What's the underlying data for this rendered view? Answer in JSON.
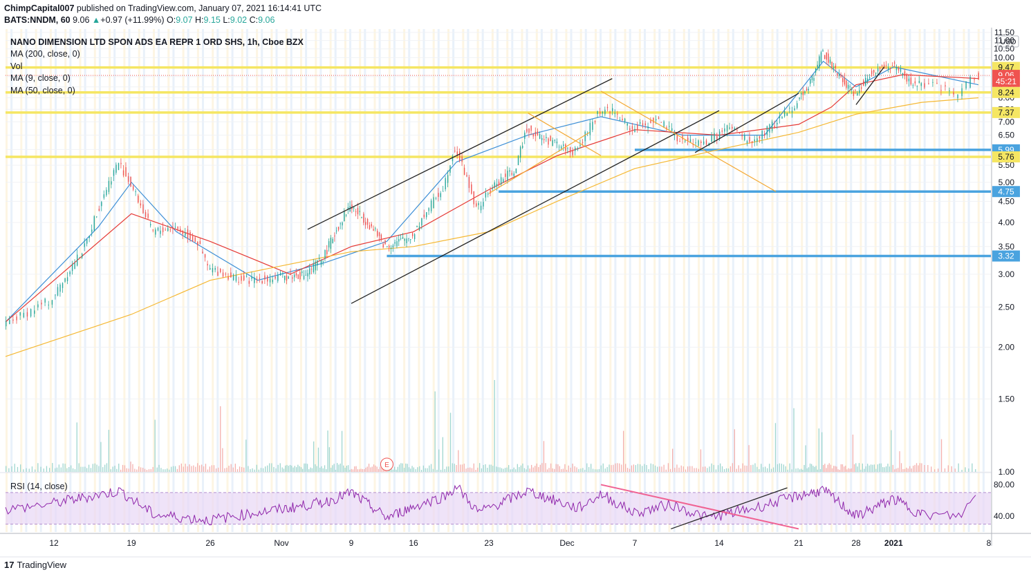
{
  "header": {
    "author": "ChimpCapital007",
    "published_text": "published on TradingView.com, January 07, 2021 16:14:41 UTC",
    "symbol": "BATS:NNDM, 60",
    "last": "9.06",
    "change_arrow": "▲",
    "change": "+0.97 (+11.99%)",
    "o_label": "O:",
    "o": "9.07",
    "h_label": "H:",
    "h": "9.15",
    "l_label": "L:",
    "l": "9.02",
    "c_label": "C:",
    "c": "9.06"
  },
  "legend": {
    "title": "NANO DIMENSION LTD SPON ADS EA REPR 1 ORD SHS, 1h, Cboe BZX",
    "items": [
      "MA (200, close, 0)",
      "Vol",
      "MA (9, close, 0)",
      "MA (50, close, 0)"
    ]
  },
  "rsi": {
    "label": "RSI (14, close)"
  },
  "footer": {
    "brand": "TradingView",
    "logo_mark": "17"
  },
  "colors": {
    "ma200": "#f5b833",
    "ma50": "#e53935",
    "ma9": "#3d8fd6",
    "support_blue": "#4aa3df",
    "resistance_yellow": "#f5e663",
    "candle_up": "#26a69a",
    "candle_down": "#ef5350",
    "rsi_line": "#8e24aa",
    "rsi_band": "#e8d7f5",
    "channel": "#222222",
    "fan": "#f4a832",
    "rsi_downtrend": "#f06292"
  },
  "chart_data": {
    "type": "candlestick",
    "scale": "log",
    "currency": "USD",
    "ylim": [
      1.0,
      11.5
    ],
    "y_ticks": [
      "11.50",
      "11.00",
      "10.50",
      "10.00",
      "9.50",
      "9.00",
      "8.50",
      "8.00",
      "7.50",
      "7.00",
      "6.50",
      "6.00",
      "5.50",
      "5.00",
      "4.50",
      "4.00",
      "3.50",
      "3.00",
      "2.50",
      "2.00",
      "1.50",
      "1.00"
    ],
    "x_ticks": [
      "12",
      "19",
      "26",
      "Nov",
      "9",
      "16",
      "23",
      "Dec",
      "7",
      "14",
      "21",
      "28",
      "2021",
      "8"
    ],
    "price_points": [
      [
        "Oct 09",
        2.25
      ],
      [
        "Oct 12",
        2.6
      ],
      [
        "Oct 15",
        3.5
      ],
      [
        "Oct 18",
        5.6
      ],
      [
        "Oct 19",
        5.0
      ],
      [
        "Oct 21",
        3.8
      ],
      [
        "Oct 23",
        3.9
      ],
      [
        "Oct 25",
        3.6
      ],
      [
        "Oct 26",
        3.1
      ],
      [
        "Oct 29",
        2.9
      ],
      [
        "Nov 04",
        3.0
      ],
      [
        "Nov 06",
        3.3
      ],
      [
        "Nov 09",
        4.4
      ],
      [
        "Nov 11",
        4.0
      ],
      [
        "Nov 13",
        3.5
      ],
      [
        "Nov 16",
        3.7
      ],
      [
        "Nov 19",
        4.9
      ],
      [
        "Nov 20",
        6.1
      ],
      [
        "Nov 22",
        4.3
      ],
      [
        "Nov 24",
        5.0
      ],
      [
        "Nov 26",
        5.4
      ],
      [
        "Nov 27",
        6.8
      ],
      [
        "Nov 28",
        6.5
      ],
      [
        "Dec 02",
        5.9
      ],
      [
        "Dec 04",
        7.4
      ],
      [
        "Dec 05",
        7.5
      ],
      [
        "Dec 07",
        6.7
      ],
      [
        "Dec 09",
        7.1
      ],
      [
        "Dec 11",
        6.3
      ],
      [
        "Dec 13",
        6.2
      ],
      [
        "Dec 15",
        6.8
      ],
      [
        "Dec 17",
        6.2
      ],
      [
        "Dec 19",
        6.9
      ],
      [
        "Dec 21",
        7.8
      ],
      [
        "Dec 23",
        9.0
      ],
      [
        "Dec 24",
        10.4
      ],
      [
        "Dec 26",
        9.0
      ],
      [
        "Dec 28",
        8.2
      ],
      [
        "Dec 30",
        9.3
      ],
      [
        "Jan 01",
        9.6
      ],
      [
        "Jan 03",
        8.7
      ],
      [
        "Jan 05",
        8.5
      ],
      [
        "Jan 06",
        8.1
      ],
      [
        "Jan 07",
        9.06
      ]
    ],
    "volume_series_label": "Vol",
    "ma_series": [
      {
        "name": "MA (9, close, 0)",
        "points": [
          [
            "Oct 09",
            2.3
          ],
          [
            "Oct 16",
            3.9
          ],
          [
            "Oct 19",
            5.0
          ],
          [
            "Oct 23",
            3.8
          ],
          [
            "Oct 30",
            2.9
          ],
          [
            "Nov 06",
            3.2
          ],
          [
            "Nov 13",
            3.6
          ],
          [
            "Nov 20",
            5.6
          ],
          [
            "Nov 27",
            6.5
          ],
          [
            "Dec 04",
            7.2
          ],
          [
            "Dec 11",
            6.5
          ],
          [
            "Dec 18",
            6.5
          ],
          [
            "Dec 24",
            9.8
          ],
          [
            "Dec 28",
            8.5
          ],
          [
            "Jan 01",
            9.5
          ],
          [
            "Jan 07",
            8.6
          ]
        ]
      },
      {
        "name": "MA (50, close, 0)",
        "points": [
          [
            "Oct 09",
            2.3
          ],
          [
            "Oct 19",
            4.2
          ],
          [
            "Oct 26",
            3.6
          ],
          [
            "Nov 02",
            3.0
          ],
          [
            "Nov 09",
            3.5
          ],
          [
            "Nov 16",
            3.8
          ],
          [
            "Nov 23",
            4.8
          ],
          [
            "Nov 30",
            5.8
          ],
          [
            "Dec 07",
            6.7
          ],
          [
            "Dec 14",
            6.5
          ],
          [
            "Dec 21",
            6.9
          ],
          [
            "Dec 25",
            7.6
          ],
          [
            "Dec 28",
            8.6
          ],
          [
            "Jan 02",
            9.1
          ],
          [
            "Jan 07",
            8.9
          ]
        ]
      },
      {
        "name": "MA (200, close, 0)",
        "points": [
          [
            "Oct 09",
            1.9
          ],
          [
            "Oct 19",
            2.4
          ],
          [
            "Oct 26",
            2.9
          ],
          [
            "Nov 09",
            3.4
          ],
          [
            "Nov 16",
            3.5
          ],
          [
            "Nov 23",
            3.8
          ],
          [
            "Nov 30",
            4.5
          ],
          [
            "Dec 07",
            5.4
          ],
          [
            "Dec 14",
            6.0
          ],
          [
            "Dec 21",
            6.6
          ],
          [
            "Dec 28",
            7.3
          ],
          [
            "Jan 04",
            7.8
          ],
          [
            "Jan 07",
            8.0
          ]
        ]
      }
    ],
    "price_badges": [
      {
        "label": "9.47",
        "value": 9.47,
        "kind": "resistance"
      },
      {
        "label": "9.06",
        "value": 9.06,
        "kind": "last"
      },
      {
        "label": "45:21",
        "value": 8.76,
        "kind": "countdown"
      },
      {
        "label": "8.24",
        "value": 8.24,
        "kind": "resistance"
      },
      {
        "label": "7.37",
        "value": 7.37,
        "kind": "resistance"
      },
      {
        "label": "5.99",
        "value": 5.99,
        "kind": "support"
      },
      {
        "label": "5.76",
        "value": 5.76,
        "kind": "resistance"
      },
      {
        "label": "4.75",
        "value": 4.75,
        "kind": "support"
      },
      {
        "label": "3.32",
        "value": 3.32,
        "kind": "support"
      }
    ],
    "horizontal_levels": [
      {
        "value": 9.47,
        "color": "yellow",
        "from": "Oct 09"
      },
      {
        "value": 8.24,
        "color": "yellow",
        "from": "Oct 09"
      },
      {
        "value": 7.37,
        "color": "yellow",
        "from": "Oct 09"
      },
      {
        "value": 5.76,
        "color": "yellow",
        "from": "Oct 09"
      },
      {
        "value": 5.99,
        "color": "blue",
        "from": "Dec 07"
      },
      {
        "value": 4.75,
        "color": "blue",
        "from": "Nov 24"
      },
      {
        "value": 3.32,
        "color": "blue",
        "from": "Nov 13"
      }
    ],
    "rsi_data": {
      "label": "RSI (14, close)",
      "ylim": [
        20,
        90
      ],
      "y_ticks": [
        "80.00",
        "40.00"
      ],
      "band": [
        30,
        70
      ],
      "points": [
        [
          "Oct 09",
          48
        ],
        [
          "Oct 14",
          62
        ],
        [
          "Oct 18",
          72
        ],
        [
          "Oct 21",
          42
        ],
        [
          "Oct 26",
          35
        ],
        [
          "Oct 30",
          45
        ],
        [
          "Nov 06",
          58
        ],
        [
          "Nov 09",
          70
        ],
        [
          "Nov 13",
          38
        ],
        [
          "Nov 19",
          66
        ],
        [
          "Nov 20",
          78
        ],
        [
          "Nov 22",
          45
        ],
        [
          "Nov 27",
          72
        ],
        [
          "Dec 02",
          50
        ],
        [
          "Dec 04",
          68
        ],
        [
          "Dec 07",
          44
        ],
        [
          "Dec 10",
          55
        ],
        [
          "Dec 13",
          38
        ],
        [
          "Dec 17",
          50
        ],
        [
          "Dec 21",
          66
        ],
        [
          "Dec 24",
          73
        ],
        [
          "Dec 28",
          40
        ],
        [
          "Jan 01",
          62
        ],
        [
          "Jan 04",
          42
        ],
        [
          "Jan 06",
          40
        ],
        [
          "Jan 07",
          70
        ]
      ]
    },
    "event_marker": {
      "label": "E",
      "date": "Nov 13"
    }
  }
}
